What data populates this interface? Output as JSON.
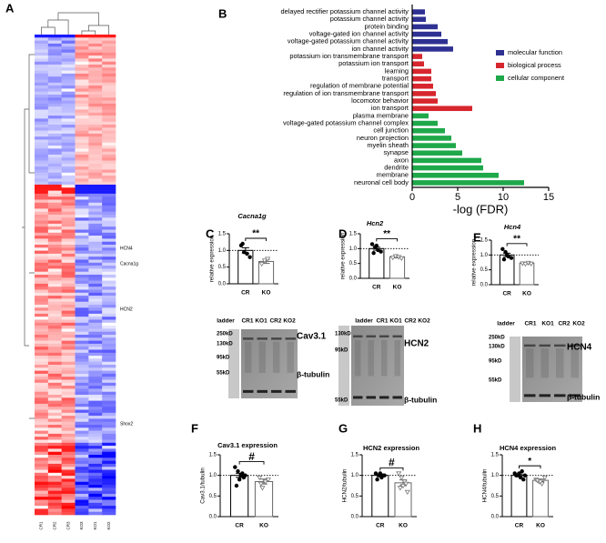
{
  "chart_data": [
    {
      "type": "heatmap",
      "panel": "A",
      "columns": [
        "CR1",
        "CR2",
        "CR3",
        "KO3",
        "KO1",
        "KO2"
      ],
      "row_labels": [
        "HCN4",
        "Cacna1g",
        "HCN2",
        "Shox2"
      ]
    },
    {
      "type": "barh",
      "panel": "B",
      "categories": [
        "delayed rectifier potassium channel activity",
        "potassium channel activity",
        "protein binding",
        "voltage-gated ion channel activity",
        "voltage-gated potassium channel activity",
        "ion channel activity",
        "potassium ion transmembrane transport",
        "potassium ion transport",
        "learning",
        "transport",
        "regulation of membrane potential",
        "regulation of ion transmembrane transport",
        "locomotor behavior",
        "ion transport",
        "plasma membrane",
        "voltage-gated potassium channel complex",
        "cell junction",
        "neuron projection",
        "myelin sheath",
        "synapse",
        "axon",
        "dendrite",
        "membrane",
        "neuronal cell body"
      ],
      "series": [
        {
          "name": "molecular function",
          "color": "#2e3192",
          "values": [
            1.4,
            1.5,
            2.8,
            3.2,
            3.9,
            4.5,
            null,
            null,
            null,
            null,
            null,
            null,
            null,
            null,
            null,
            null,
            null,
            null,
            null,
            null,
            null,
            null,
            null,
            null
          ]
        },
        {
          "name": "biological process",
          "color": "#d7262e",
          "values": [
            null,
            null,
            null,
            null,
            null,
            null,
            1.1,
            1.3,
            2.1,
            2.1,
            2.3,
            2.6,
            2.8,
            6.6,
            null,
            null,
            null,
            null,
            null,
            null,
            null,
            null,
            null,
            null
          ]
        },
        {
          "name": "cellular component",
          "color": "#1fa84a",
          "values": [
            null,
            null,
            null,
            null,
            null,
            null,
            null,
            null,
            null,
            null,
            null,
            null,
            null,
            null,
            1.8,
            2.8,
            3.6,
            4.3,
            4.8,
            5.5,
            7.6,
            7.8,
            9.5,
            12.3
          ]
        }
      ],
      "xlim": [
        0,
        15
      ],
      "xticks": [
        0,
        5,
        10,
        15
      ],
      "xlabel": "-log (FDR)"
    },
    {
      "type": "dotbar",
      "panel": "C",
      "title": "Cacna1g",
      "title_style": "italic",
      "ylabel": "relative expression",
      "categories": [
        "CR",
        "KO"
      ],
      "values": [
        1.0,
        0.67
      ],
      "errors": [
        0.08,
        0.06
      ],
      "points": [
        [
          1.15,
          0.95,
          0.9,
          0.8,
          1.2
        ],
        [
          0.6,
          0.7,
          0.75
        ]
      ],
      "ylim": [
        0,
        1.5
      ],
      "yticks": [
        {
          "value": 0,
          "label": "0.0"
        },
        {
          "value": 0.5,
          "label": "0.5"
        },
        {
          "value": 1,
          "label": "1.0"
        },
        {
          "value": 1.5,
          "label": "1.5"
        }
      ],
      "reference_line": 1.0,
      "significance": "**"
    },
    {
      "type": "dotbar",
      "panel": "D",
      "title": "Hcn2",
      "title_style": "italic",
      "ylabel": "relative expression",
      "categories": [
        "CR",
        "KO"
      ],
      "values": [
        1.0,
        0.72
      ],
      "errors": [
        0.05,
        0.03
      ],
      "points": [
        [
          1.15,
          1.05,
          0.95,
          0.9,
          0.85,
          1.1
        ],
        [
          0.7,
          0.75,
          0.72,
          0.68
        ]
      ],
      "ylim": [
        0,
        1.5
      ],
      "yticks": [
        {
          "value": 0,
          "label": "0.0"
        },
        {
          "value": 0.5,
          "label": "0.5"
        },
        {
          "value": 1,
          "label": "1.0"
        },
        {
          "value": 1.5,
          "label": "1.5"
        }
      ],
      "reference_line": 1.0,
      "significance": "**"
    },
    {
      "type": "dotbar",
      "panel": "E",
      "title": "Hcn4",
      "title_style": "italic",
      "ylabel": "relative expression",
      "categories": [
        "CR",
        "KO"
      ],
      "values": [
        1.0,
        0.72
      ],
      "errors": [
        0.06,
        0.02
      ],
      "points": [
        [
          1.2,
          1.1,
          0.95,
          0.9,
          0.85,
          1.0
        ],
        [
          0.72,
          0.7,
          0.74,
          0.71
        ]
      ],
      "ylim": [
        0,
        1.5
      ],
      "yticks": [
        {
          "value": 0,
          "label": "0.0"
        },
        {
          "value": 0.5,
          "label": "0.5"
        },
        {
          "value": 1,
          "label": "1.0"
        },
        {
          "value": 1.5,
          "label": "1.5"
        }
      ],
      "reference_line": 1.0,
      "significance": "**"
    },
    {
      "type": "dotbar",
      "panel": "F",
      "title": "Cav3.1 expression",
      "title_style": "bold",
      "ylabel": "Cav3.1/tubulin",
      "categories": [
        "CR",
        "KO"
      ],
      "values": [
        1.0,
        0.85
      ],
      "errors": [
        0.05,
        0.06
      ],
      "points": [
        [
          1.2,
          1.1,
          1.0,
          0.95,
          0.75,
          0.9,
          1.05,
          1.0
        ],
        [
          0.95,
          0.7,
          0.85,
          0.9,
          0.8
        ]
      ],
      "ylim": [
        0,
        1.5
      ],
      "yticks": [
        {
          "value": 0,
          "label": "0.0"
        },
        {
          "value": 0.5,
          "label": "0.5"
        },
        {
          "value": 1,
          "label": "1.0"
        },
        {
          "value": 1.5,
          "label": "1.5"
        }
      ],
      "reference_line": 1.0,
      "significance": "#"
    },
    {
      "type": "dotbar",
      "panel": "G",
      "title": "HCN2 expression",
      "title_style": "bold",
      "ylabel": "HCN2/tubulin",
      "categories": [
        "CR",
        "KO"
      ],
      "values": [
        1.0,
        0.82
      ],
      "errors": [
        0.03,
        0.07
      ],
      "points": [
        [
          1.05,
          1.0,
          0.95,
          1.0,
          0.9,
          1.05,
          1.0
        ],
        [
          1.05,
          0.95,
          0.85,
          0.6,
          0.7,
          0.75,
          0.8
        ]
      ],
      "ylim": [
        0,
        1.5
      ],
      "yticks": [
        {
          "value": 0,
          "label": "0.0"
        },
        {
          "value": 0.5,
          "label": "0.5"
        },
        {
          "value": 1,
          "label": "1.0"
        },
        {
          "value": 1.5,
          "label": "1.5"
        }
      ],
      "reference_line": 1.0,
      "significance": "#"
    },
    {
      "type": "dotbar",
      "panel": "H",
      "title": "HCN4 expression",
      "title_style": "bold",
      "ylabel": "HCN4/tubulin",
      "categories": [
        "CR",
        "KO"
      ],
      "values": [
        1.0,
        0.88
      ],
      "errors": [
        0.03,
        0.03
      ],
      "points": [
        [
          1.05,
          1.0,
          0.95,
          0.9,
          1.0,
          1.05,
          1.1,
          1.0
        ],
        [
          0.9,
          0.85,
          0.8,
          0.95,
          0.88,
          0.85
        ]
      ],
      "ylim": [
        0,
        1.5
      ],
      "yticks": [
        {
          "value": 0,
          "label": "0.0"
        },
        {
          "value": 0.5,
          "label": "0.5"
        },
        {
          "value": 1,
          "label": "1.0"
        },
        {
          "value": 1.5,
          "label": "1.5"
        }
      ],
      "reference_line": 1.0,
      "significance": "*"
    }
  ],
  "blots": [
    {
      "lanes": [
        "ladder",
        "CR1",
        "KO1",
        "CR2",
        "KO2"
      ],
      "markers": [
        "250kD",
        "130kD",
        "95kD",
        "55kD"
      ],
      "protein": "Cav3.1",
      "loading": "β-tubulin"
    },
    {
      "lanes": [
        "ladder",
        "CR1",
        "KO1",
        "CR2",
        "KO2"
      ],
      "markers": [
        "130kD",
        "95kD",
        "55kD"
      ],
      "protein": "HCN2",
      "loading": "β-tubulin"
    },
    {
      "lanes": [
        "ladder",
        "CR1",
        "KO1",
        "CR2",
        "KO2"
      ],
      "markers": [
        "250kD",
        "130kD",
        "95kD",
        "55kD"
      ],
      "protein": "HCN4",
      "loading": "β-tubulin"
    }
  ]
}
